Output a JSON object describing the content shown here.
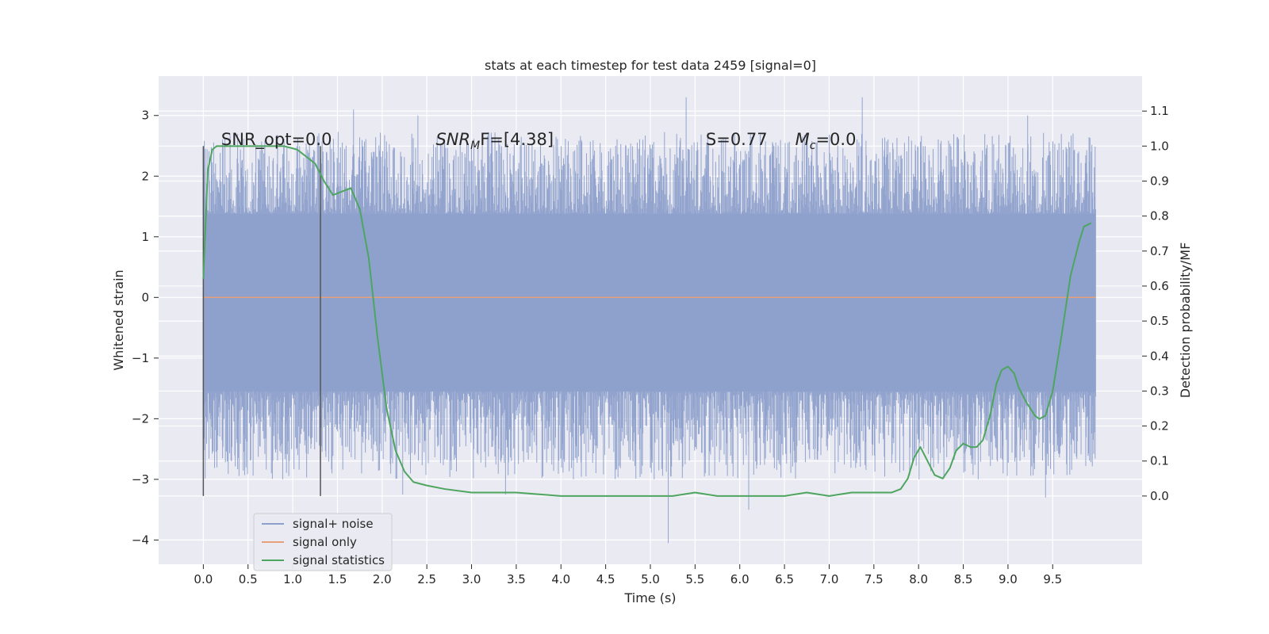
{
  "chart_data": {
    "type": "line",
    "title": "stats at each timestep for test data 2459 [signal=0]",
    "xlabel": "Time (s)",
    "ylabel": "Whitened strain",
    "y2label": "Detection probability/MF",
    "xlim": [
      -0.5,
      10.5
    ],
    "ylim": [
      -4.4,
      3.65
    ],
    "y2lim": [
      -0.195,
      1.2
    ],
    "xticks": [
      "0.0",
      "0.5",
      "1.0",
      "1.5",
      "2.0",
      "2.5",
      "3.0",
      "3.5",
      "4.0",
      "4.5",
      "5.0",
      "5.5",
      "6.0",
      "6.5",
      "7.0",
      "7.5",
      "8.0",
      "8.5",
      "9.0",
      "9.5"
    ],
    "yticks": [
      "3",
      "2",
      "1",
      "0",
      "−1",
      "−2",
      "−3",
      "−4"
    ],
    "y2ticks": [
      "1.1",
      "1.0",
      "0.9",
      "0.8",
      "0.7",
      "0.6",
      "0.5",
      "0.4",
      "0.3",
      "0.2",
      "0.1",
      "0.0"
    ],
    "grid": true,
    "legend_position": "lower-left",
    "annotations": [
      {
        "text": "SNR_opt=0.0",
        "x": 0.2
      },
      {
        "text_base": "SNR",
        "sub": "M",
        "tail": "F=[4.38]",
        "x": 2.6
      },
      {
        "text": "S=0.77",
        "x": 5.62
      },
      {
        "text_base": "M",
        "sub": "c",
        "tail": "=0.0",
        "x": 6.62
      }
    ],
    "vlines": [
      0.0,
      1.31
    ],
    "series": [
      {
        "name": "signal+ noise",
        "color": "#8da0cb",
        "x_range": [
          0.0,
          9.98
        ],
        "core_band": [
          -1.55,
          1.38
        ],
        "extremes": [
          {
            "x": 1.68,
            "y": 3.1
          },
          {
            "x": 2.4,
            "y": 3.0
          },
          {
            "x": 5.4,
            "y": 3.3
          },
          {
            "x": 7.37,
            "y": 3.3
          },
          {
            "x": 9.22,
            "y": 3.0
          },
          {
            "x": 5.2,
            "y": -4.05
          },
          {
            "x": 6.1,
            "y": -3.5
          },
          {
            "x": 9.42,
            "y": -3.3
          },
          {
            "x": 2.23,
            "y": -3.25
          },
          {
            "x": 3.38,
            "y": -3.25
          },
          {
            "x": 4.28,
            "y": -2.95
          }
        ]
      },
      {
        "name": "signal only",
        "color": "#e8a07a",
        "x": [
          0.0,
          9.98
        ],
        "y": [
          0.0,
          0.0
        ]
      },
      {
        "name": "signal statistics",
        "color": "#4ea55f",
        "axis": "right",
        "x": [
          0.0,
          0.05,
          0.1,
          0.15,
          0.3,
          0.5,
          0.7,
          0.9,
          1.05,
          1.15,
          1.25,
          1.35,
          1.45,
          1.55,
          1.65,
          1.75,
          1.85,
          1.95,
          2.05,
          2.15,
          2.25,
          2.35,
          2.5,
          2.7,
          3.0,
          3.5,
          4.0,
          4.5,
          5.0,
          5.25,
          5.5,
          5.75,
          6.0,
          6.25,
          6.5,
          6.75,
          7.0,
          7.25,
          7.5,
          7.7,
          7.8,
          7.88,
          7.95,
          8.02,
          8.1,
          8.18,
          8.27,
          8.35,
          8.42,
          8.5,
          8.58,
          8.65,
          8.72,
          8.8,
          8.87,
          8.93,
          9.0,
          9.07,
          9.12,
          9.2,
          9.3,
          9.35,
          9.42,
          9.5,
          9.6,
          9.7,
          9.8,
          9.85,
          9.93
        ],
        "y": [
          0.62,
          0.93,
          0.99,
          1.0,
          1.0,
          1.0,
          1.0,
          1.0,
          0.99,
          0.97,
          0.95,
          0.9,
          0.86,
          0.87,
          0.88,
          0.82,
          0.68,
          0.45,
          0.25,
          0.13,
          0.07,
          0.04,
          0.03,
          0.02,
          0.01,
          0.01,
          0.0,
          0.0,
          0.0,
          0.0,
          0.01,
          0.0,
          0.0,
          0.0,
          0.0,
          0.01,
          0.0,
          0.01,
          0.01,
          0.01,
          0.02,
          0.05,
          0.11,
          0.14,
          0.1,
          0.06,
          0.05,
          0.08,
          0.13,
          0.15,
          0.14,
          0.14,
          0.16,
          0.23,
          0.32,
          0.36,
          0.37,
          0.35,
          0.31,
          0.27,
          0.23,
          0.22,
          0.23,
          0.3,
          0.46,
          0.63,
          0.73,
          0.77,
          0.78
        ]
      }
    ]
  }
}
